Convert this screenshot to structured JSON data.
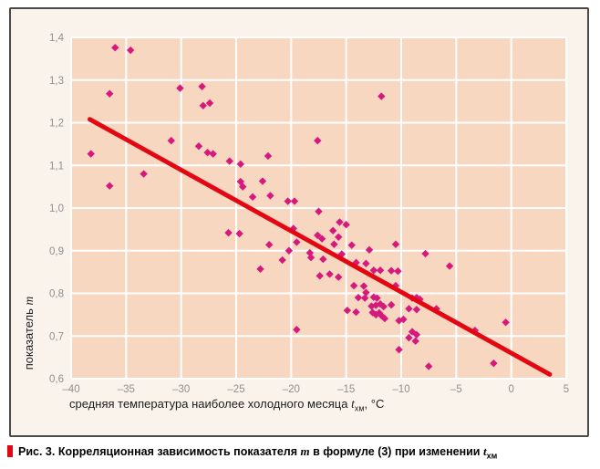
{
  "figure": {
    "caption": {
      "bullet_color": "#e30613",
      "part1": "Рис. 3. Корреляционная зависимость показателя ",
      "var1": "m",
      "part2": " в формуле (3) при изменении ",
      "var2": "t",
      "var2_sub": "хм"
    }
  },
  "chart_data": {
    "type": "scatter",
    "title": "",
    "xlabel": {
      "text": "средняя температура наиболее холодного месяца ",
      "var": "t",
      "var_sub": "хм",
      "unit": ", °С"
    },
    "ylabel": {
      "text": "показатель ",
      "var": "m"
    },
    "xlim": [
      -40,
      5
    ],
    "ylim": [
      0.6,
      1.4
    ],
    "grid": true,
    "legend": false,
    "x_ticks": [
      -40,
      -35,
      -30,
      -25,
      -20,
      -15,
      -10,
      -5,
      0,
      5
    ],
    "x_tick_labels": [
      "–40",
      "–35",
      "–30",
      "–25",
      "–20",
      "–15",
      "–10",
      "–5",
      "0",
      "5"
    ],
    "y_ticks": [
      0.6,
      0.7,
      0.8,
      0.9,
      1.0,
      1.1,
      1.2,
      1.3,
      1.4
    ],
    "y_tick_labels": [
      "0,6",
      "0,7",
      "0,8",
      "0,9",
      "1,0",
      "1,1",
      "1,2",
      "1,3",
      "1,4"
    ],
    "colors": {
      "panel_bg": "#faf3ec",
      "plot_bg": "#f8d7c1",
      "grid": "#ffffff",
      "point": "#d6197d",
      "trend": "#e30613",
      "tick_text": "#8f8f8f",
      "label_text": "#1c1c1c"
    },
    "trend_line": {
      "x1": -38.3,
      "y1": 1.208,
      "x2": 3.5,
      "y2": 0.61
    },
    "points": [
      [
        -36.0,
        1.376
      ],
      [
        -34.6,
        1.37
      ],
      [
        -36.5,
        1.268
      ],
      [
        -30.1,
        1.281
      ],
      [
        -28.1,
        1.285
      ],
      [
        -28.0,
        1.24
      ],
      [
        -27.4,
        1.246
      ],
      [
        -38.2,
        1.127
      ],
      [
        -30.9,
        1.158
      ],
      [
        -28.4,
        1.145
      ],
      [
        -27.6,
        1.13
      ],
      [
        -27.1,
        1.127
      ],
      [
        -25.6,
        1.11
      ],
      [
        -24.6,
        1.103
      ],
      [
        -22.1,
        1.122
      ],
      [
        -17.6,
        1.158
      ],
      [
        -11.8,
        1.262
      ],
      [
        -33.4,
        1.08
      ],
      [
        -36.5,
        1.052
      ],
      [
        -24.6,
        1.062
      ],
      [
        -24.4,
        1.05
      ],
      [
        -22.6,
        1.063
      ],
      [
        -23.5,
        1.026
      ],
      [
        -21.9,
        1.029
      ],
      [
        -20.3,
        1.016
      ],
      [
        -19.7,
        1.016
      ],
      [
        -25.7,
        0.942
      ],
      [
        -24.7,
        0.94
      ],
      [
        -17.5,
        0.992
      ],
      [
        -19.8,
        0.952
      ],
      [
        -15.6,
        0.967
      ],
      [
        -15.0,
        0.961
      ],
      [
        -16.2,
        0.947
      ],
      [
        -17.6,
        0.936
      ],
      [
        -17.2,
        0.928
      ],
      [
        -15.7,
        0.932
      ],
      [
        -19.5,
        0.92
      ],
      [
        -22.0,
        0.914
      ],
      [
        -20.2,
        0.9
      ],
      [
        -20.8,
        0.878
      ],
      [
        -22.8,
        0.857
      ],
      [
        -18.3,
        0.895
      ],
      [
        -18.2,
        0.884
      ],
      [
        -17.1,
        0.88
      ],
      [
        -16.1,
        0.915
      ],
      [
        -14.5,
        0.913
      ],
      [
        -15.4,
        0.892
      ],
      [
        -17.4,
        0.841
      ],
      [
        -16.5,
        0.845
      ],
      [
        -15.7,
        0.838
      ],
      [
        -14.1,
        0.872
      ],
      [
        -13.2,
        0.87
      ],
      [
        -12.9,
        0.902
      ],
      [
        -10.5,
        0.915
      ],
      [
        -7.8,
        0.893
      ],
      [
        -5.6,
        0.864
      ],
      [
        -12.5,
        0.854
      ],
      [
        -11.9,
        0.854
      ],
      [
        -10.9,
        0.853
      ],
      [
        -10.3,
        0.852
      ],
      [
        -14.3,
        0.818
      ],
      [
        -13.4,
        0.817
      ],
      [
        -10.5,
        0.818
      ],
      [
        -13.2,
        0.802
      ],
      [
        -13.9,
        0.79
      ],
      [
        -13.3,
        0.789
      ],
      [
        -12.5,
        0.791
      ],
      [
        -12.2,
        0.789
      ],
      [
        -14.9,
        0.76
      ],
      [
        -14.1,
        0.756
      ],
      [
        -12.7,
        0.77
      ],
      [
        -12.3,
        0.772
      ],
      [
        -11.9,
        0.775
      ],
      [
        -11.6,
        0.769
      ],
      [
        -10.9,
        0.773
      ],
      [
        -12.6,
        0.755
      ],
      [
        -12.3,
        0.75
      ],
      [
        -12.0,
        0.754
      ],
      [
        -11.8,
        0.748
      ],
      [
        -11.5,
        0.741
      ],
      [
        -10.2,
        0.736
      ],
      [
        -9.8,
        0.739
      ],
      [
        -9.0,
        0.789
      ],
      [
        -8.3,
        0.786
      ],
      [
        -8.6,
        0.79
      ],
      [
        -9.3,
        0.764
      ],
      [
        -8.6,
        0.762
      ],
      [
        -6.8,
        0.764
      ],
      [
        -19.5,
        0.715
      ],
      [
        -9.0,
        0.71
      ],
      [
        -8.6,
        0.703
      ],
      [
        -9.3,
        0.696
      ],
      [
        -8.7,
        0.688
      ],
      [
        -10.2,
        0.668
      ],
      [
        -3.3,
        0.713
      ],
      [
        -0.5,
        0.732
      ],
      [
        -7.5,
        0.629
      ],
      [
        -1.6,
        0.636
      ]
    ]
  }
}
